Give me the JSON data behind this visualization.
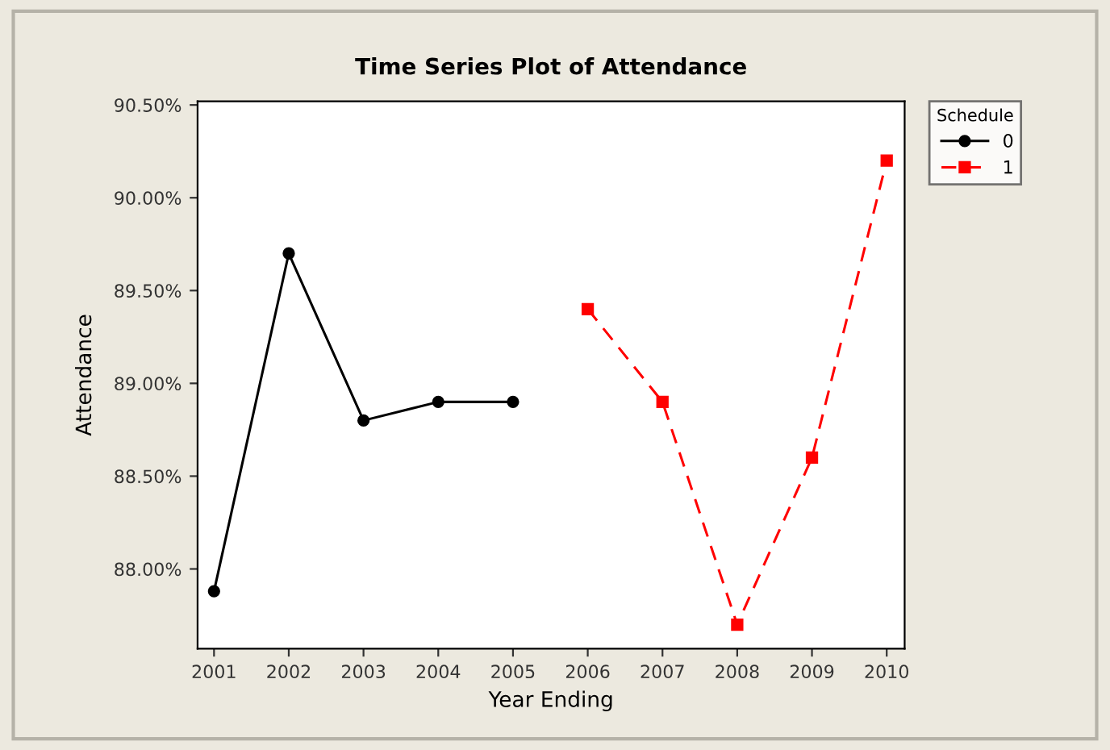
{
  "chart_data": {
    "type": "line",
    "title": "Time Series Plot of Attendance",
    "xlabel": "Year Ending",
    "ylabel": "Attendance",
    "legend_title": "Schedule",
    "legend": "top right",
    "grid": false,
    "x": [
      2001,
      2002,
      2003,
      2004,
      2005,
      2006,
      2007,
      2008,
      2009,
      2010
    ],
    "series": [
      {
        "name": "0",
        "color": "#000000",
        "marker": "circle",
        "line_style": "solid",
        "values": [
          87.88,
          89.7,
          88.8,
          88.9,
          88.9,
          null,
          null,
          null,
          null,
          null
        ]
      },
      {
        "name": "1",
        "color": "#ff0000",
        "marker": "square",
        "line_style": "dashed",
        "values": [
          null,
          null,
          null,
          null,
          null,
          89.4,
          88.9,
          87.7,
          88.6,
          90.2
        ]
      }
    ],
    "xlim": [
      2000.78,
      2010.24
    ],
    "xticks": [
      2001,
      2002,
      2003,
      2004,
      2005,
      2006,
      2007,
      2008,
      2009,
      2010
    ],
    "ylim": [
      87.57,
      90.52
    ],
    "yticks": [
      {
        "value": 88.0,
        "label": "88.00%"
      },
      {
        "value": 88.5,
        "label": "88.50%"
      },
      {
        "value": 89.0,
        "label": "89.00%"
      },
      {
        "value": 89.5,
        "label": "89.50%"
      },
      {
        "value": 90.0,
        "label": "90.00%"
      },
      {
        "value": 90.5,
        "label": "90.50%"
      }
    ]
  }
}
